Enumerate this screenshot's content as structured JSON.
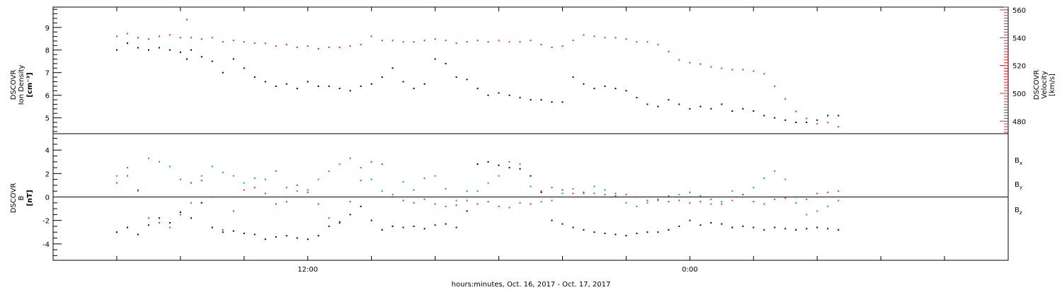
{
  "chart_data": [
    {
      "type": "scatter",
      "panel": "top",
      "ylabel_lines": [
        "DSCOVR",
        "Ion Density",
        "[cm⁻³]"
      ],
      "ylabel2_lines": [
        "DSCOVR",
        "Velocity",
        "[km/s]"
      ],
      "ylim": [
        4.3,
        9.9
      ],
      "ylim2": [
        471,
        562
      ],
      "y_ticks": [
        "5",
        "6",
        "7",
        "8",
        "9"
      ],
      "y2_ticks": [
        "480",
        "500",
        "520",
        "540",
        "560"
      ],
      "colors": {
        "density": "#000000",
        "velocity": "#e8232a"
      },
      "series": [
        {
          "id": "density",
          "axis": "left",
          "x": [
            0.0,
            0.5,
            1.0,
            1.5,
            2.0,
            2.5,
            3.0,
            3.3,
            3.5,
            4.0,
            4.5,
            5.0,
            5.5,
            6.0,
            6.5,
            7.0,
            7.5,
            8.0,
            8.5,
            9.0,
            9.5,
            10.0,
            10.5,
            11.0,
            11.5,
            12.0,
            12.5,
            13.0,
            13.5,
            14.0,
            14.5,
            15.0,
            15.5,
            16.0,
            16.5,
            17.0,
            17.5,
            18.0,
            18.5,
            19.0,
            19.5,
            20.0,
            20.5,
            21.0,
            21.5,
            22.0,
            22.5,
            23.0,
            23.5,
            24.0,
            24.5,
            25.0,
            25.5,
            26.0,
            26.5,
            27.0,
            27.5,
            28.0,
            28.5,
            29.0,
            29.5,
            30.0,
            30.5,
            31.0,
            31.5,
            32.0,
            32.5,
            33.0,
            33.5,
            34.0
          ],
          "y": [
            8.0,
            8.3,
            8.1,
            8.0,
            8.1,
            8.0,
            7.9,
            7.6,
            8.0,
            7.7,
            7.5,
            7.0,
            7.6,
            7.2,
            6.8,
            6.6,
            6.4,
            6.5,
            6.3,
            6.6,
            6.4,
            6.4,
            6.3,
            6.2,
            6.4,
            6.5,
            6.8,
            7.2,
            6.6,
            6.3,
            6.5,
            7.6,
            7.4,
            6.8,
            6.7,
            6.3,
            6.0,
            6.1,
            6.0,
            5.9,
            5.8,
            5.8,
            5.7,
            5.7,
            6.8,
            6.5,
            6.3,
            6.4,
            6.3,
            6.2,
            5.9,
            5.6,
            5.5,
            5.8,
            5.6,
            5.4,
            5.5,
            5.4,
            5.6,
            5.3,
            5.4,
            5.3,
            5.1,
            5.0,
            4.9,
            4.8,
            4.8,
            4.9,
            5.1,
            5.1
          ]
        },
        {
          "id": "velocity",
          "axis": "right",
          "x": [
            0.0,
            0.5,
            1.0,
            1.5,
            2.0,
            2.5,
            3.0,
            3.3,
            3.5,
            4.0,
            4.5,
            5.0,
            5.5,
            6.0,
            6.5,
            7.0,
            7.5,
            8.0,
            8.5,
            9.0,
            9.5,
            10.0,
            10.5,
            11.0,
            11.5,
            12.0,
            12.5,
            13.0,
            13.5,
            14.0,
            14.5,
            15.0,
            15.5,
            16.0,
            16.5,
            17.0,
            17.5,
            18.0,
            18.5,
            19.0,
            19.5,
            20.0,
            20.5,
            21.0,
            21.5,
            22.0,
            22.5,
            23.0,
            23.5,
            24.0,
            24.5,
            25.0,
            25.5,
            26.0,
            26.5,
            27.0,
            27.5,
            28.0,
            28.5,
            29.0,
            29.5,
            30.0,
            30.5,
            31.0,
            31.5,
            32.0,
            32.5,
            33.0,
            33.5,
            34.0
          ],
          "y": [
            541,
            543,
            540,
            539,
            541,
            542,
            540,
            553,
            540,
            539,
            540,
            537,
            538,
            537,
            536,
            536,
            534,
            535,
            533,
            534,
            532,
            533,
            533,
            534,
            535,
            541,
            538,
            538,
            537,
            537,
            538,
            539,
            538,
            536,
            537,
            538,
            537,
            538,
            537,
            537,
            538,
            535,
            533,
            534,
            538,
            542,
            541,
            540,
            540,
            539,
            537,
            537,
            535,
            530,
            524,
            522,
            521,
            519,
            518,
            517,
            517,
            516,
            514,
            505,
            496,
            487,
            482,
            478,
            479,
            476
          ]
        }
      ]
    },
    {
      "type": "scatter",
      "panel": "bottom",
      "ylabel_lines": [
        "DSCOVR",
        "B",
        "[nT]"
      ],
      "ylim": [
        -5.4,
        5.4
      ],
      "y_ticks": [
        "-4",
        "-2",
        "0",
        "2",
        "4"
      ],
      "xlabel": "hours:minutes, Oct. 16, 2017 - Oct. 17, 2017",
      "x_ticks": [
        {
          "x": 9,
          "label": "12:00"
        },
        {
          "x": 27,
          "label": "0:00"
        }
      ],
      "xlim": [
        -3,
        42
      ],
      "zero_line": 0,
      "colors": {
        "Bx": "#000000",
        "By": "#1d86d6",
        "Bz": "#e8232a"
      },
      "series": [
        {
          "id": "Bx",
          "name": "B",
          "sub": "x",
          "axis": "left",
          "x": [
            0.0,
            0.5,
            1.0,
            1.5,
            2.0,
            2.5,
            3.0,
            3.5,
            4.0,
            4.5,
            5.0,
            5.5,
            6.0,
            6.5,
            7.0,
            7.5,
            8.0,
            8.5,
            9.0,
            9.5,
            10.0,
            10.5,
            11.0,
            11.5,
            12.0,
            12.5,
            13.0,
            13.5,
            14.0,
            14.5,
            15.0,
            15.5,
            16.0,
            16.5,
            17.0,
            17.5,
            18.0,
            18.5,
            19.0,
            19.5,
            20.0,
            20.5,
            21.0,
            21.5,
            22.0,
            22.5,
            23.0,
            23.5,
            24.0,
            24.5,
            25.0,
            25.5,
            26.0,
            26.5,
            27.0,
            27.5,
            28.0,
            28.5,
            29.0,
            29.5,
            30.0,
            30.5,
            31.0,
            31.5,
            32.0,
            32.5,
            33.0,
            33.5,
            34.0
          ],
          "y": [
            -3.0,
            -2.6,
            -3.2,
            -2.4,
            -1.8,
            -2.2,
            -1.3,
            -1.8,
            -0.5,
            -2.6,
            -3.0,
            -2.9,
            -3.1,
            -3.2,
            -3.6,
            -3.4,
            -3.3,
            -3.5,
            -3.6,
            -3.3,
            -2.5,
            -2.2,
            -1.5,
            -0.8,
            -2.0,
            -2.8,
            -2.5,
            -2.6,
            -2.5,
            -2.7,
            -2.4,
            -2.3,
            -2.6,
            -1.2,
            2.8,
            3.0,
            2.7,
            2.5,
            2.4,
            1.8,
            0.4,
            -2.0,
            -2.3,
            -2.6,
            -2.8,
            -3.0,
            -3.1,
            -3.2,
            -3.3,
            -3.1,
            -3.0,
            -3.0,
            -2.8,
            -2.5,
            -2.0,
            -2.4,
            -2.2,
            -2.3,
            -2.6,
            -2.5,
            -2.6,
            -2.8,
            -2.6,
            -2.7,
            -2.8,
            -2.7,
            -2.6,
            -2.7,
            -2.8
          ]
        },
        {
          "id": "By",
          "name": "B",
          "sub": "y",
          "axis": "left",
          "x": [
            0.0,
            0.5,
            1.0,
            1.5,
            2.0,
            2.5,
            3.0,
            3.5,
            4.0,
            4.5,
            5.0,
            5.5,
            6.0,
            6.5,
            7.0,
            7.5,
            8.0,
            8.5,
            9.0,
            9.5,
            10.0,
            10.5,
            11.0,
            11.5,
            12.0,
            12.5,
            13.0,
            13.5,
            14.0,
            14.5,
            15.0,
            15.5,
            16.0,
            16.5,
            17.0,
            17.5,
            18.0,
            18.5,
            19.0,
            19.5,
            20.0,
            20.5,
            21.0,
            21.5,
            22.0,
            22.5,
            23.0,
            23.5,
            24.0,
            24.5,
            25.0,
            25.5,
            26.0,
            26.5,
            27.0,
            27.5,
            28.0,
            28.5,
            29.0,
            29.5,
            30.0,
            30.5,
            31.0,
            31.5,
            32.0,
            32.5,
            33.0,
            33.5,
            34.0
          ],
          "y": [
            1.8,
            2.5,
            0.5,
            3.3,
            3.0,
            2.6,
            1.5,
            -0.5,
            1.8,
            2.6,
            2.1,
            1.8,
            1.2,
            1.6,
            1.5,
            2.2,
            0.8,
            0.5,
            0.6,
            1.5,
            2.2,
            2.8,
            3.3,
            2.5,
            1.5,
            0.5,
            0.2,
            1.3,
            0.6,
            1.6,
            1.8,
            0.7,
            -0.3,
            0.5,
            0.5,
            1.2,
            1.8,
            3.0,
            2.8,
            0.9,
            -0.4,
            -0.3,
            0.3,
            0.7,
            0.3,
            0.9,
            0.6,
            0.3,
            -0.5,
            -0.8,
            -0.5,
            -0.3,
            0.1,
            0.2,
            0.4,
            0.1,
            -0.6,
            -0.4,
            0.5,
            0.2,
            0.8,
            1.6,
            2.2,
            1.5,
            -0.5,
            -1.5,
            -1.2,
            -0.8,
            -0.3
          ]
        },
        {
          "id": "Bz",
          "name": "B",
          "sub": "z",
          "axis": "left",
          "x": [
            0.0,
            0.5,
            1.0,
            1.5,
            2.0,
            2.5,
            3.0,
            3.5,
            4.0,
            4.5,
            5.0,
            5.5,
            6.0,
            6.5,
            7.0,
            7.5,
            8.0,
            8.5,
            9.0,
            9.5,
            10.0,
            10.5,
            11.0,
            11.5,
            12.0,
            12.5,
            13.0,
            13.5,
            14.0,
            14.5,
            15.0,
            15.5,
            16.0,
            16.5,
            17.0,
            17.5,
            18.0,
            18.5,
            19.0,
            19.5,
            20.0,
            20.5,
            21.0,
            21.5,
            22.0,
            22.5,
            23.0,
            23.5,
            24.0,
            24.5,
            25.0,
            25.5,
            26.0,
            26.5,
            27.0,
            27.5,
            28.0,
            28.5,
            29.0,
            29.5,
            30.0,
            30.5,
            31.0,
            31.5,
            32.0,
            32.5,
            33.0,
            33.5,
            34.0
          ],
          "y": [
            1.2,
            1.8,
            0.6,
            -1.8,
            -2.2,
            -2.6,
            -1.5,
            1.2,
            1.4,
            0.0,
            -2.8,
            -1.2,
            0.6,
            0.8,
            0.3,
            -0.6,
            -0.4,
            1.0,
            0.4,
            -0.6,
            -1.8,
            -2.1,
            -0.4,
            1.4,
            3.0,
            2.8,
            0.0,
            -0.3,
            -0.5,
            -0.2,
            -0.6,
            -0.8,
            -0.7,
            -0.3,
            -0.6,
            -0.4,
            -0.8,
            -0.9,
            -0.5,
            -0.6,
            0.5,
            0.8,
            0.6,
            0.3,
            0.4,
            0.3,
            0.2,
            0.1,
            0.2,
            0.0,
            -0.3,
            -0.2,
            -0.4,
            -0.3,
            -0.5,
            -0.4,
            -0.2,
            -0.6,
            -0.3,
            0.2,
            -0.4,
            -0.6,
            -0.2,
            -0.1,
            0.0,
            -0.2,
            0.3,
            0.4,
            0.5
          ]
        }
      ]
    }
  ]
}
